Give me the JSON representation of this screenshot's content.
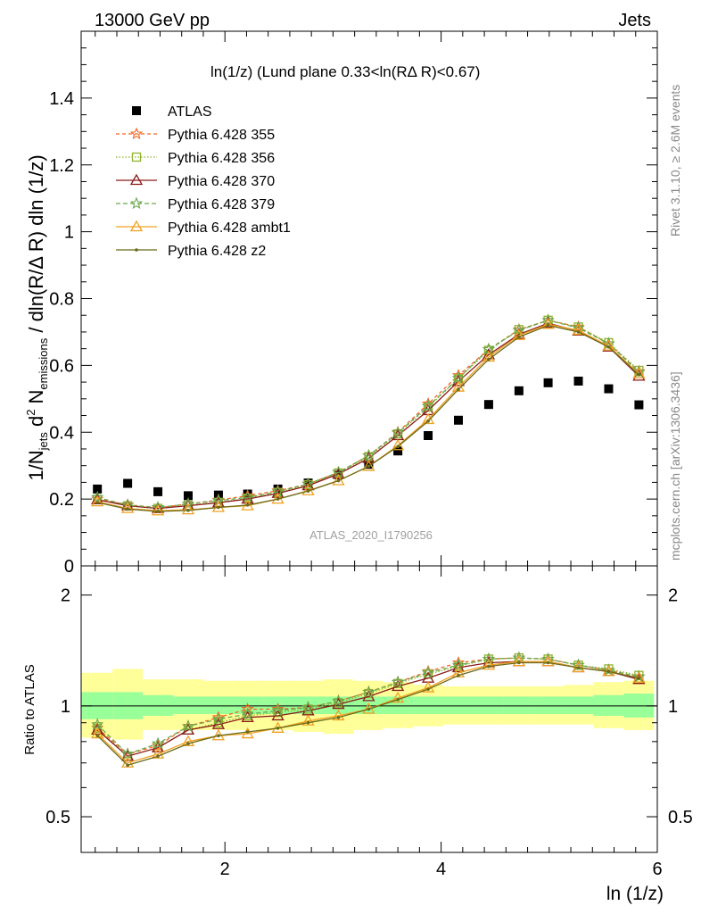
{
  "header": {
    "left": "13000 GeV pp",
    "right": "Jets"
  },
  "plot": {
    "title": "ln(1/z) (Lund plane 0.33<ln(RΔ R)<0.67)",
    "analysis_tag": "ATLAS_2020_I1790256",
    "y_axis_label": "1/N_jets d^2 N_emissions / dln(R/Δ R) dln(1/z)",
    "ratio_ylabel": "Ratio to ATLAS",
    "x_axis_label": "ln (1/z)"
  },
  "side_text": {
    "rivet": "Rivet 3.1.10, ≥ 2.6M events",
    "mcplots": "mcplots.cern.ch [arXiv:1306.3436]"
  },
  "legend": [
    {
      "label": "ATLAS",
      "color": "#000000",
      "marker": "square"
    },
    {
      "label": "Pythia 6.428 355",
      "color": "#f26522",
      "marker": "star"
    },
    {
      "label": "Pythia 6.428 356",
      "color": "#8db32a",
      "marker": "open-square"
    },
    {
      "label": "Pythia 6.428 370",
      "color": "#8b1a1a",
      "marker": "open-triangle"
    },
    {
      "label": "Pythia 6.428 379",
      "color": "#6aa84f",
      "marker": "star"
    },
    {
      "label": "Pythia 6.428 ambt1",
      "color": "#f0a020",
      "marker": "open-triangle"
    },
    {
      "label": "Pythia 6.428 z2",
      "color": "#6b6b1a",
      "marker": "dot"
    }
  ],
  "chart_data": [
    {
      "type": "scatter",
      "x": [
        0.82,
        1.1,
        1.38,
        1.66,
        1.94,
        2.21,
        2.49,
        2.77,
        3.05,
        3.33,
        3.6,
        3.88,
        4.16,
        4.44,
        4.72,
        4.99,
        5.27,
        5.55,
        5.83
      ],
      "xlim": [
        0.67,
        6.0
      ],
      "ylim": [
        0,
        1.6
      ],
      "yticks": [
        0,
        0.2,
        0.4,
        0.6,
        0.8,
        1,
        1.2,
        1.4
      ],
      "xticks": [
        2,
        4,
        6
      ],
      "series": [
        {
          "name": "ATLAS",
          "values": [
            0.23,
            0.247,
            0.222,
            0.21,
            0.212,
            0.215,
            0.23,
            0.248,
            0.273,
            0.304,
            0.344,
            0.39,
            0.436,
            0.483,
            0.524,
            0.548,
            0.553,
            0.53,
            0.482
          ]
        },
        {
          "name": "Pythia 6.428 355",
          "values": [
            0.2,
            0.183,
            0.174,
            0.185,
            0.197,
            0.21,
            0.225,
            0.245,
            0.28,
            0.33,
            0.4,
            0.485,
            0.57,
            0.648,
            0.707,
            0.735,
            0.715,
            0.665,
            0.582
          ]
        },
        {
          "name": "Pythia 6.428 356",
          "values": [
            0.199,
            0.18,
            0.172,
            0.181,
            0.19,
            0.202,
            0.22,
            0.243,
            0.278,
            0.327,
            0.395,
            0.475,
            0.56,
            0.645,
            0.707,
            0.735,
            0.715,
            0.668,
            0.585
          ]
        },
        {
          "name": "Pythia 6.428 370",
          "values": [
            0.198,
            0.18,
            0.172,
            0.18,
            0.189,
            0.2,
            0.217,
            0.24,
            0.275,
            0.322,
            0.39,
            0.465,
            0.552,
            0.632,
            0.693,
            0.726,
            0.703,
            0.655,
            0.568
          ]
        },
        {
          "name": "Pythia 6.428 379",
          "values": [
            0.205,
            0.182,
            0.175,
            0.185,
            0.195,
            0.205,
            0.222,
            0.245,
            0.28,
            0.33,
            0.398,
            0.478,
            0.562,
            0.648,
            0.705,
            0.735,
            0.712,
            0.665,
            0.58
          ]
        },
        {
          "name": "Pythia 6.428 ambt1",
          "values": [
            0.192,
            0.172,
            0.165,
            0.168,
            0.175,
            0.18,
            0.2,
            0.225,
            0.255,
            0.298,
            0.36,
            0.438,
            0.535,
            0.625,
            0.69,
            0.723,
            0.705,
            0.658,
            0.575
          ]
        },
        {
          "name": "Pythia 6.428 z2",
          "values": [
            0.19,
            0.17,
            0.163,
            0.166,
            0.175,
            0.182,
            0.2,
            0.224,
            0.255,
            0.298,
            0.357,
            0.433,
            0.528,
            0.618,
            0.685,
            0.72,
            0.7,
            0.655,
            0.572
          ]
        }
      ]
    },
    {
      "type": "line",
      "x": [
        0.82,
        1.1,
        1.38,
        1.66,
        1.94,
        2.21,
        2.49,
        2.77,
        3.05,
        3.33,
        3.6,
        3.88,
        4.16,
        4.44,
        4.72,
        4.99,
        5.27,
        5.55,
        5.83
      ],
      "xlim": [
        0.67,
        6.0
      ],
      "ylim": [
        0.4,
        2.4
      ],
      "yscale": "log",
      "yticks": [
        0.5,
        1,
        2
      ],
      "xticks": [
        2,
        4,
        6
      ],
      "band_edges": [
        0.67,
        0.96,
        1.24,
        1.52,
        1.8,
        2.08,
        2.35,
        2.63,
        2.91,
        3.19,
        3.46,
        3.74,
        4.02,
        4.3,
        4.58,
        4.85,
        5.13,
        5.41,
        5.69,
        5.97
      ],
      "stat_band": {
        "lo": [
          0.92,
          0.92,
          0.94,
          0.95,
          0.95,
          0.95,
          0.95,
          0.95,
          0.95,
          0.95,
          0.95,
          0.95,
          0.95,
          0.95,
          0.95,
          0.95,
          0.95,
          0.94,
          0.93
        ],
        "hi": [
          1.09,
          1.09,
          1.07,
          1.06,
          1.06,
          1.06,
          1.06,
          1.06,
          1.06,
          1.06,
          1.06,
          1.06,
          1.06,
          1.06,
          1.06,
          1.06,
          1.06,
          1.07,
          1.08
        ]
      },
      "syst_band": {
        "lo": [
          0.82,
          0.81,
          0.86,
          0.86,
          0.86,
          0.86,
          0.86,
          0.85,
          0.84,
          0.86,
          0.87,
          0.88,
          0.89,
          0.89,
          0.89,
          0.89,
          0.89,
          0.87,
          0.86
        ],
        "hi": [
          1.23,
          1.26,
          1.18,
          1.18,
          1.17,
          1.17,
          1.17,
          1.17,
          1.18,
          1.17,
          1.16,
          1.14,
          1.13,
          1.13,
          1.13,
          1.13,
          1.14,
          1.16,
          1.17
        ]
      },
      "series": [
        {
          "name": "Pythia 6.428 355",
          "values": [
            0.87,
            0.74,
            0.78,
            0.88,
            0.93,
            0.98,
            0.98,
            0.99,
            1.03,
            1.09,
            1.16,
            1.24,
            1.31,
            1.34,
            1.35,
            1.34,
            1.29,
            1.25,
            1.2
          ]
        },
        {
          "name": "Pythia 6.428 356",
          "values": [
            0.87,
            0.73,
            0.77,
            0.86,
            0.9,
            0.94,
            0.96,
            0.98,
            1.02,
            1.08,
            1.15,
            1.22,
            1.28,
            1.34,
            1.35,
            1.34,
            1.29,
            1.26,
            1.21
          ]
        },
        {
          "name": "Pythia 6.428 370",
          "values": [
            0.86,
            0.73,
            0.77,
            0.86,
            0.89,
            0.93,
            0.94,
            0.97,
            1.01,
            1.06,
            1.13,
            1.19,
            1.27,
            1.31,
            1.32,
            1.32,
            1.27,
            1.24,
            1.18
          ]
        },
        {
          "name": "Pythia 6.428 379",
          "values": [
            0.89,
            0.74,
            0.79,
            0.88,
            0.92,
            0.95,
            0.97,
            0.99,
            1.03,
            1.09,
            1.16,
            1.23,
            1.29,
            1.34,
            1.35,
            1.34,
            1.29,
            1.25,
            1.2
          ]
        },
        {
          "name": "Pythia 6.428 ambt1",
          "values": [
            0.84,
            0.7,
            0.74,
            0.8,
            0.83,
            0.84,
            0.87,
            0.91,
            0.94,
            0.98,
            1.05,
            1.12,
            1.23,
            1.29,
            1.32,
            1.32,
            1.27,
            1.24,
            1.19
          ]
        },
        {
          "name": "Pythia 6.428 z2",
          "values": [
            0.83,
            0.69,
            0.73,
            0.79,
            0.83,
            0.85,
            0.87,
            0.9,
            0.93,
            0.98,
            1.04,
            1.11,
            1.21,
            1.28,
            1.31,
            1.31,
            1.27,
            1.24,
            1.19
          ]
        }
      ]
    }
  ]
}
